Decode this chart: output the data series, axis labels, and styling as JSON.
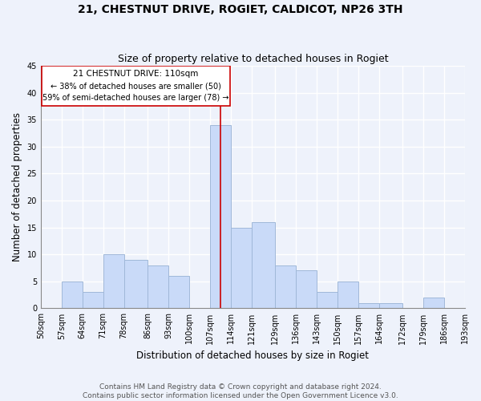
{
  "title": "21, CHESTNUT DRIVE, ROGIET, CALDICOT, NP26 3TH",
  "subtitle": "Size of property relative to detached houses in Rogiet",
  "xlabel": "Distribution of detached houses by size in Rogiet",
  "ylabel": "Number of detached properties",
  "bin_edges": [
    50,
    57,
    64,
    71,
    78,
    86,
    93,
    100,
    107,
    114,
    121,
    129,
    136,
    143,
    150,
    157,
    164,
    172,
    179,
    186,
    193
  ],
  "bin_labels": [
    "50sqm",
    "57sqm",
    "64sqm",
    "71sqm",
    "78sqm",
    "86sqm",
    "93sqm",
    "100sqm",
    "107sqm",
    "114sqm",
    "121sqm",
    "129sqm",
    "136sqm",
    "143sqm",
    "150sqm",
    "157sqm",
    "164sqm",
    "172sqm",
    "179sqm",
    "186sqm",
    "193sqm"
  ],
  "counts": [
    0,
    5,
    3,
    10,
    9,
    8,
    6,
    0,
    34,
    15,
    16,
    8,
    7,
    3,
    5,
    1,
    1,
    0,
    2,
    0
  ],
  "bar_color": "#c9daf8",
  "bar_edge_color": "#a0b8d8",
  "property_line_x": 110.5,
  "property_line_color": "#cc0000",
  "annotation_line1": "21 CHESTNUT DRIVE: 110sqm",
  "annotation_line2": "← 38% of detached houses are smaller (50)",
  "annotation_line3": "59% of semi-detached houses are larger (78) →",
  "annotation_box_color": "#ffffff",
  "annotation_box_edge_color": "#cc0000",
  "ylim": [
    0,
    45
  ],
  "yticks": [
    0,
    5,
    10,
    15,
    20,
    25,
    30,
    35,
    40,
    45
  ],
  "footer_line1": "Contains HM Land Registry data © Crown copyright and database right 2024.",
  "footer_line2": "Contains public sector information licensed under the Open Government Licence v3.0.",
  "bg_color": "#eef2fb",
  "grid_color": "#ffffff",
  "title_fontsize": 10,
  "subtitle_fontsize": 9,
  "axis_label_fontsize": 8.5,
  "tick_fontsize": 7,
  "footer_fontsize": 6.5
}
